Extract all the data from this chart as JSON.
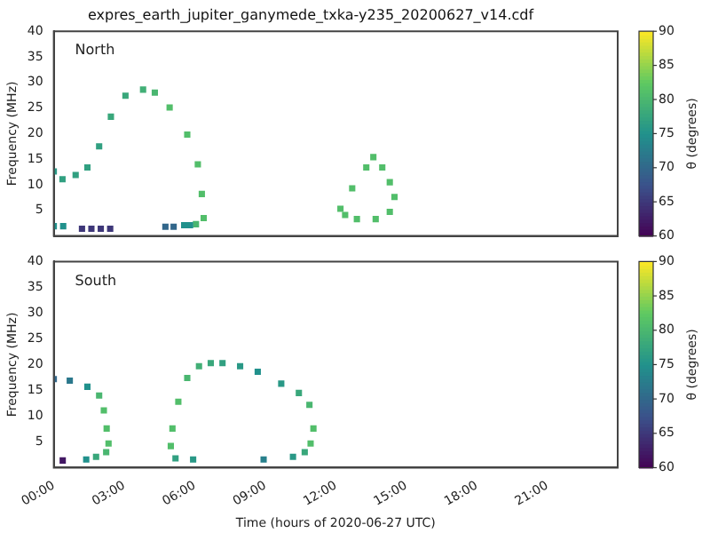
{
  "chart_data": [
    {
      "type": "scatter",
      "title": "expres_earth_jupiter_ganymede_txka-y235_20200627_v14.cdf",
      "ylabel": "Frequency (MHz)",
      "clabel": "θ (degrees)",
      "annotations": [
        "North"
      ],
      "marker": "square",
      "tick_labels": "y",
      "x": [
        0,
        0.37,
        0.93,
        1.43,
        1.93,
        2.43,
        3.05,
        3.8,
        4.3,
        4.93,
        5.68,
        6.13,
        6.3,
        6.38,
        6.05,
        0,
        0.4,
        1.2,
        1.6,
        2.0,
        2.4,
        4.75,
        5.1,
        5.55,
        5.8,
        12.2,
        12.7,
        13.3,
        13.6,
        13.98,
        14.3,
        14.5,
        14.3,
        13.7,
        12.9,
        12.4
      ],
      "values": [
        12.6,
        11.1,
        11.9,
        13.4,
        17.5,
        23.3,
        27.4,
        28.6,
        28.0,
        25.1,
        19.8,
        14.0,
        8.2,
        3.5,
        2.3,
        1.9,
        1.9,
        1.4,
        1.4,
        1.4,
        1.4,
        1.8,
        1.8,
        2.1,
        2.1,
        5.3,
        9.3,
        13.4,
        15.4,
        13.4,
        10.5,
        7.6,
        4.7,
        3.3,
        3.3,
        4.1
      ],
      "cvalues": [
        76,
        77,
        77,
        77,
        77,
        78,
        78,
        79,
        80,
        81,
        81,
        81,
        81,
        81,
        80,
        75,
        75,
        65,
        65,
        65,
        65,
        70,
        70,
        75,
        75,
        81,
        81,
        81,
        81,
        81,
        81,
        81,
        81,
        81,
        81,
        81
      ],
      "xlim": [
        0,
        24
      ],
      "ylim": [
        0,
        40
      ],
      "yticks": [
        5,
        10,
        15,
        20,
        25,
        30,
        35,
        40
      ],
      "clim": [
        60,
        90
      ],
      "cticks": [
        60,
        65,
        70,
        75,
        80,
        85,
        90
      ]
    },
    {
      "type": "scatter",
      "xlabel": "Time (hours of 2020-06-27 UTC)",
      "ylabel": "Frequency (MHz)",
      "clabel": "θ (degrees)",
      "annotations": [
        "South"
      ],
      "marker": "square",
      "x": [
        0,
        0.68,
        1.43,
        1.93,
        2.13,
        2.25,
        2.33,
        2.23,
        1.8,
        1.38,
        0.38,
        5.18,
        4.98,
        5.05,
        5.3,
        5.68,
        6.18,
        6.68,
        7.18,
        7.93,
        8.68,
        9.68,
        10.43,
        10.88,
        11.05,
        10.93,
        10.68,
        10.18,
        8.93,
        5.93
      ],
      "values": [
        17.2,
        16.9,
        15.7,
        14.0,
        11.1,
        7.6,
        4.7,
        3.0,
        2.1,
        1.6,
        1.4,
        1.8,
        4.2,
        7.6,
        12.8,
        17.4,
        19.7,
        20.3,
        20.3,
        19.7,
        18.6,
        16.3,
        14.5,
        12.2,
        7.6,
        4.7,
        3.0,
        2.1,
        1.6,
        1.6
      ],
      "cvalues": [
        70,
        72,
        75,
        80,
        81,
        81,
        81,
        80,
        78,
        75,
        62,
        77,
        81,
        81,
        81,
        80,
        79,
        78,
        77,
        76,
        75,
        76,
        78,
        80,
        81,
        81,
        78,
        76,
        73,
        76
      ],
      "xlim": [
        0,
        24
      ],
      "xticks": [
        {
          "value": 0,
          "label": "00:00"
        },
        {
          "value": 3,
          "label": "03:00"
        },
        {
          "value": 6,
          "label": "06:00"
        },
        {
          "value": 9,
          "label": "09:00"
        },
        {
          "value": 12,
          "label": "12:00"
        },
        {
          "value": 15,
          "label": "15:00"
        },
        {
          "value": 18,
          "label": "18:00"
        },
        {
          "value": 21,
          "label": "21:00"
        }
      ],
      "ylim": [
        0,
        40
      ],
      "yticks": [
        5,
        10,
        15,
        20,
        25,
        30,
        35,
        40
      ],
      "clim": [
        60,
        90
      ],
      "cticks": [
        60,
        65,
        70,
        75,
        80,
        85,
        90
      ]
    }
  ]
}
